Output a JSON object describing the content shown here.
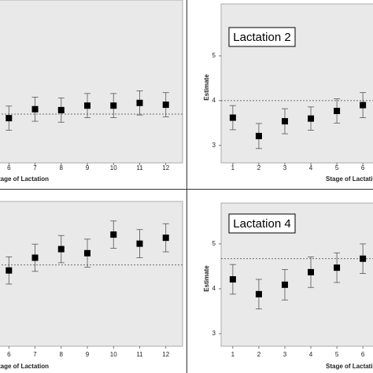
{
  "chart_data": [
    {
      "type": "scatter",
      "xlabel": "Stage of Lactation",
      "x": [
        6,
        7,
        8,
        9,
        10,
        11,
        12
      ],
      "values": [
        3.61,
        3.81,
        3.79,
        3.89,
        3.89,
        3.95,
        3.91
      ],
      "errors": [
        0.27,
        0.27,
        0.27,
        0.27,
        0.27,
        0.27,
        0.27
      ],
      "hline": 3.7,
      "xlim": [
        5.6,
        12.64
      ],
      "ylim": [
        2.61,
        6.25
      ],
      "xticks": [
        6,
        7,
        8,
        9,
        10,
        11,
        12
      ]
    },
    {
      "type": "scatter",
      "title": "Lactation 2",
      "xlabel": "Stage of Lactation",
      "ylabel": "Estimate",
      "x": [
        1,
        2,
        3,
        4,
        5,
        6
      ],
      "values": [
        3.62,
        3.21,
        3.54,
        3.6,
        3.77,
        3.9
      ],
      "errors": [
        0.27,
        0.28,
        0.28,
        0.26,
        0.27,
        0.28
      ],
      "hline": 4.0,
      "xlim": [
        0.55,
        6.45
      ],
      "ylim": [
        2.61,
        6.16
      ],
      "xticks": [
        1,
        2,
        3,
        4,
        5,
        6
      ],
      "yticks": [
        3,
        4,
        5
      ]
    },
    {
      "type": "scatter",
      "xlabel": "Stage of Lactation",
      "x": [
        6,
        7,
        8,
        9,
        10,
        11,
        12
      ],
      "values": [
        4.39,
        4.67,
        4.86,
        4.77,
        5.18,
        4.98,
        5.11
      ],
      "errors": [
        0.3,
        0.3,
        0.3,
        0.31,
        0.3,
        0.31,
        0.31
      ],
      "hline": 4.51,
      "xlim": [
        5.6,
        12.64
      ],
      "ylim": [
        2.72,
        5.91
      ],
      "xticks": [
        6,
        7,
        8,
        9,
        10,
        11,
        12
      ]
    },
    {
      "type": "scatter",
      "title": "Lactation 4",
      "xlabel": "Stage of Lactation",
      "ylabel": "Estimate",
      "x": [
        1,
        2,
        3,
        4,
        5,
        6
      ],
      "values": [
        4.21,
        3.88,
        4.09,
        4.37,
        4.47,
        4.67
      ],
      "errors": [
        0.33,
        0.33,
        0.34,
        0.34,
        0.33,
        0.33
      ],
      "hline": 4.67,
      "xlim": [
        0.55,
        6.45
      ],
      "ylim": [
        2.72,
        5.91
      ],
      "xticks": [
        1,
        2,
        3,
        4,
        5,
        6
      ],
      "yticks": [
        3,
        4,
        5
      ]
    }
  ]
}
